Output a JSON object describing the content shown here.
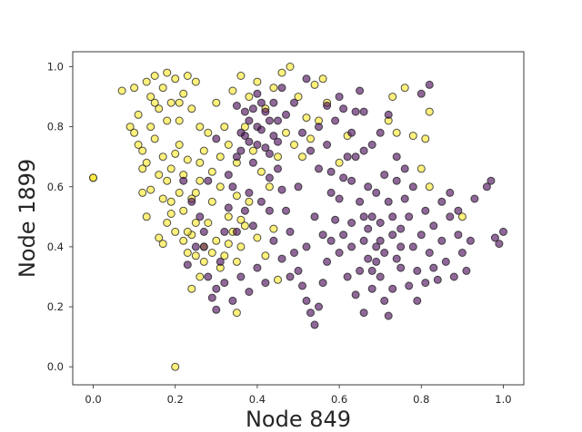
{
  "chart_data": {
    "type": "scatter",
    "title": "",
    "xlabel": "Node 849",
    "ylabel": "Node 1899",
    "xlim": [
      -0.05,
      1.05
    ],
    "ylim": [
      -0.06,
      1.05
    ],
    "xticks": [
      "0.0",
      "0.2",
      "0.4",
      "0.6",
      "0.8",
      "1.0"
    ],
    "yticks": [
      "0.0",
      "0.2",
      "0.4",
      "0.6",
      "0.8",
      "1.0"
    ],
    "xtick_values": [
      0.0,
      0.2,
      0.4,
      0.6,
      0.8,
      1.0
    ],
    "ytick_values": [
      0.0,
      0.2,
      0.4,
      0.6,
      0.8,
      1.0
    ],
    "grid": false,
    "legend": "none",
    "series": [
      {
        "color": "#fde725",
        "points": [
          [
            0.0,
            0.63
          ],
          [
            0.2,
            0.0
          ],
          [
            0.0,
            0.63
          ],
          [
            0.07,
            0.92
          ],
          [
            0.09,
            0.8
          ],
          [
            0.1,
            0.78
          ],
          [
            0.12,
            0.72
          ],
          [
            0.11,
            0.84
          ],
          [
            0.13,
            0.95
          ],
          [
            0.14,
            0.9
          ],
          [
            0.15,
            0.97
          ],
          [
            0.16,
            0.86
          ],
          [
            0.17,
            0.93
          ],
          [
            0.18,
            0.98
          ],
          [
            0.19,
            0.88
          ],
          [
            0.2,
            0.96
          ],
          [
            0.21,
            0.82
          ],
          [
            0.22,
            0.91
          ],
          [
            0.23,
            0.97
          ],
          [
            0.24,
            0.86
          ],
          [
            0.25,
            0.95
          ],
          [
            0.26,
            0.8
          ],
          [
            0.15,
            0.76
          ],
          [
            0.17,
            0.7
          ],
          [
            0.19,
            0.66
          ],
          [
            0.21,
            0.74
          ],
          [
            0.23,
            0.69
          ],
          [
            0.13,
            0.68
          ],
          [
            0.12,
            0.66
          ],
          [
            0.16,
            0.64
          ],
          [
            0.14,
            0.59
          ],
          [
            0.12,
            0.58
          ],
          [
            0.13,
            0.5
          ],
          [
            0.16,
            0.43
          ],
          [
            0.17,
            0.41
          ],
          [
            0.18,
            0.48
          ],
          [
            0.19,
            0.55
          ],
          [
            0.2,
            0.45
          ],
          [
            0.22,
            0.52
          ],
          [
            0.23,
            0.38
          ],
          [
            0.24,
            0.44
          ],
          [
            0.25,
            0.58
          ],
          [
            0.26,
            0.62
          ],
          [
            0.27,
            0.35
          ],
          [
            0.28,
            0.48
          ],
          [
            0.29,
            0.55
          ],
          [
            0.3,
            0.42
          ],
          [
            0.31,
            0.6
          ],
          [
            0.32,
            0.37
          ],
          [
            0.33,
            0.5
          ],
          [
            0.34,
            0.45
          ],
          [
            0.35,
            0.57
          ],
          [
            0.36,
            0.4
          ],
          [
            0.3,
            0.88
          ],
          [
            0.32,
            0.8
          ],
          [
            0.34,
            0.92
          ],
          [
            0.36,
            0.97
          ],
          [
            0.38,
            0.9
          ],
          [
            0.4,
            0.95
          ],
          [
            0.42,
            0.86
          ],
          [
            0.44,
            0.93
          ],
          [
            0.46,
            0.98
          ],
          [
            0.48,
            1.0
          ],
          [
            0.5,
            0.9
          ],
          [
            0.52,
            0.83
          ],
          [
            0.54,
            0.94
          ],
          [
            0.56,
            0.96
          ],
          [
            0.57,
            0.88
          ],
          [
            0.47,
            0.78
          ],
          [
            0.49,
            0.74
          ],
          [
            0.51,
            0.7
          ],
          [
            0.53,
            0.76
          ],
          [
            0.55,
            0.82
          ],
          [
            0.45,
            0.7
          ],
          [
            0.28,
            0.78
          ],
          [
            0.27,
            0.72
          ],
          [
            0.26,
            0.68
          ],
          [
            0.29,
            0.65
          ],
          [
            0.31,
            0.7
          ],
          [
            0.33,
            0.74
          ],
          [
            0.35,
            0.68
          ],
          [
            0.37,
            0.8
          ],
          [
            0.39,
            0.72
          ],
          [
            0.41,
            0.65
          ],
          [
            0.43,
            0.6
          ],
          [
            0.38,
            0.55
          ],
          [
            0.36,
            0.49
          ],
          [
            0.4,
            0.43
          ],
          [
            0.42,
            0.37
          ],
          [
            0.44,
            0.46
          ],
          [
            0.26,
            0.3
          ],
          [
            0.24,
            0.26
          ],
          [
            0.35,
            0.18
          ],
          [
            0.45,
            0.29
          ],
          [
            0.76,
            0.93
          ],
          [
            0.78,
            0.77
          ],
          [
            0.8,
            0.66
          ],
          [
            0.82,
            0.6
          ],
          [
            0.82,
            0.85
          ],
          [
            0.81,
            0.76
          ],
          [
            0.72,
            0.82
          ],
          [
            0.74,
            0.78
          ],
          [
            0.73,
            0.9
          ],
          [
            0.9,
            0.5
          ],
          [
            0.62,
            0.77
          ],
          [
            0.6,
            0.68
          ],
          [
            0.15,
            0.88
          ],
          [
            0.18,
            0.82
          ],
          [
            0.21,
            0.88
          ],
          [
            0.14,
            0.8
          ],
          [
            0.11,
            0.74
          ],
          [
            0.1,
            0.93
          ],
          [
            0.2,
            0.71
          ],
          [
            0.22,
            0.64
          ],
          [
            0.18,
            0.62
          ],
          [
            0.24,
            0.56
          ],
          [
            0.21,
            0.58
          ],
          [
            0.19,
            0.51
          ],
          [
            0.17,
            0.56
          ],
          [
            0.25,
            0.48
          ],
          [
            0.23,
            0.45
          ],
          [
            0.27,
            0.4
          ],
          [
            0.29,
            0.38
          ],
          [
            0.31,
            0.33
          ],
          [
            0.33,
            0.41
          ],
          [
            0.35,
            0.35
          ],
          [
            0.37,
            0.47
          ],
          [
            0.25,
            0.37
          ],
          [
            0.22,
            0.42
          ]
        ]
      },
      {
        "color": "#440154",
        "points": [
          [
            0.22,
            0.62
          ],
          [
            0.24,
            0.55
          ],
          [
            0.26,
            0.5
          ],
          [
            0.27,
            0.4
          ],
          [
            0.28,
            0.3
          ],
          [
            0.29,
            0.23
          ],
          [
            0.3,
            0.19
          ],
          [
            0.31,
            0.35
          ],
          [
            0.32,
            0.45
          ],
          [
            0.33,
            0.53
          ],
          [
            0.34,
            0.6
          ],
          [
            0.35,
            0.7
          ],
          [
            0.36,
            0.78
          ],
          [
            0.37,
            0.85
          ],
          [
            0.38,
            0.75
          ],
          [
            0.39,
            0.68
          ],
          [
            0.4,
            0.8
          ],
          [
            0.41,
            0.88
          ],
          [
            0.42,
            0.73
          ],
          [
            0.43,
            0.82
          ],
          [
            0.44,
            0.77
          ],
          [
            0.45,
            0.66
          ],
          [
            0.46,
            0.59
          ],
          [
            0.47,
            0.52
          ],
          [
            0.48,
            0.45
          ],
          [
            0.49,
            0.38
          ],
          [
            0.5,
            0.32
          ],
          [
            0.51,
            0.27
          ],
          [
            0.52,
            0.22
          ],
          [
            0.53,
            0.18
          ],
          [
            0.54,
            0.14
          ],
          [
            0.55,
            0.2
          ],
          [
            0.56,
            0.28
          ],
          [
            0.57,
            0.35
          ],
          [
            0.58,
            0.42
          ],
          [
            0.59,
            0.49
          ],
          [
            0.6,
            0.56
          ],
          [
            0.61,
            0.63
          ],
          [
            0.62,
            0.7
          ],
          [
            0.63,
            0.78
          ],
          [
            0.64,
            0.85
          ],
          [
            0.65,
            0.92
          ],
          [
            0.66,
            0.72
          ],
          [
            0.67,
            0.6
          ],
          [
            0.68,
            0.5
          ],
          [
            0.69,
            0.4
          ],
          [
            0.7,
            0.3
          ],
          [
            0.71,
            0.22
          ],
          [
            0.72,
            0.17
          ],
          [
            0.73,
            0.26
          ],
          [
            0.74,
            0.36
          ],
          [
            0.75,
            0.46
          ],
          [
            0.76,
            0.56
          ],
          [
            0.77,
            0.5
          ],
          [
            0.78,
            0.4
          ],
          [
            0.79,
            0.32
          ],
          [
            0.8,
            0.44
          ],
          [
            0.81,
            0.52
          ],
          [
            0.82,
            0.38
          ],
          [
            0.83,
            0.47
          ],
          [
            0.84,
            0.29
          ],
          [
            0.85,
            0.42
          ],
          [
            0.86,
            0.35
          ],
          [
            0.87,
            0.5
          ],
          [
            0.88,
            0.3
          ],
          [
            0.89,
            0.44
          ],
          [
            0.9,
            0.38
          ],
          [
            0.91,
            0.32
          ],
          [
            0.92,
            0.42
          ],
          [
            0.96,
            0.6
          ],
          [
            0.97,
            0.62
          ],
          [
            0.98,
            0.43
          ],
          [
            0.99,
            0.41
          ],
          [
            1.0,
            0.45
          ],
          [
            0.93,
            0.56
          ],
          [
            0.8,
            0.91
          ],
          [
            0.82,
            0.94
          ],
          [
            0.57,
            0.87
          ],
          [
            0.6,
            0.9
          ],
          [
            0.52,
            0.96
          ],
          [
            0.46,
            0.93
          ],
          [
            0.4,
            0.91
          ],
          [
            0.35,
            0.87
          ],
          [
            0.3,
            0.76
          ],
          [
            0.28,
            0.62
          ],
          [
            0.33,
            0.64
          ],
          [
            0.38,
            0.58
          ],
          [
            0.43,
            0.52
          ],
          [
            0.5,
            0.6
          ],
          [
            0.55,
            0.66
          ],
          [
            0.58,
            0.58
          ],
          [
            0.63,
            0.48
          ],
          [
            0.66,
            0.42
          ],
          [
            0.7,
            0.48
          ],
          [
            0.72,
            0.55
          ],
          [
            0.74,
            0.62
          ],
          [
            0.76,
            0.66
          ],
          [
            0.78,
            0.6
          ],
          [
            0.6,
            0.38
          ],
          [
            0.62,
            0.3
          ],
          [
            0.64,
            0.24
          ],
          [
            0.66,
            0.18
          ],
          [
            0.68,
            0.26
          ],
          [
            0.56,
            0.44
          ],
          [
            0.54,
            0.5
          ],
          [
            0.52,
            0.4
          ],
          [
            0.48,
            0.3
          ],
          [
            0.46,
            0.36
          ],
          [
            0.44,
            0.42
          ],
          [
            0.42,
            0.28
          ],
          [
            0.4,
            0.33
          ],
          [
            0.38,
            0.25
          ],
          [
            0.36,
            0.3
          ],
          [
            0.34,
            0.22
          ],
          [
            0.32,
            0.28
          ],
          [
            0.3,
            0.26
          ],
          [
            0.27,
            0.45
          ],
          [
            0.25,
            0.4
          ],
          [
            0.23,
            0.34
          ],
          [
            0.35,
            0.45
          ],
          [
            0.37,
            0.52
          ],
          [
            0.39,
            0.47
          ],
          [
            0.41,
            0.55
          ],
          [
            0.43,
            0.63
          ],
          [
            0.45,
            0.75
          ],
          [
            0.47,
            0.84
          ],
          [
            0.49,
            0.88
          ],
          [
            0.51,
            0.78
          ],
          [
            0.53,
            0.72
          ],
          [
            0.55,
            0.8
          ],
          [
            0.57,
            0.74
          ],
          [
            0.59,
            0.82
          ],
          [
            0.61,
            0.86
          ],
          [
            0.63,
            0.62
          ],
          [
            0.65,
            0.55
          ],
          [
            0.67,
            0.36
          ],
          [
            0.69,
            0.58
          ],
          [
            0.71,
            0.64
          ],
          [
            0.73,
            0.44
          ],
          [
            0.75,
            0.33
          ],
          [
            0.77,
            0.27
          ],
          [
            0.79,
            0.22
          ],
          [
            0.81,
            0.28
          ],
          [
            0.83,
            0.33
          ],
          [
            0.85,
            0.55
          ],
          [
            0.87,
            0.58
          ],
          [
            0.89,
            0.52
          ],
          [
            0.66,
            0.85
          ],
          [
            0.7,
            0.78
          ],
          [
            0.74,
            0.7
          ],
          [
            0.72,
            0.84
          ],
          [
            0.68,
            0.74
          ],
          [
            0.64,
            0.7
          ],
          [
            0.58,
            0.65
          ],
          [
            0.4,
            0.74
          ],
          [
            0.42,
            0.85
          ],
          [
            0.38,
            0.82
          ],
          [
            0.44,
            0.88
          ],
          [
            0.36,
            0.72
          ],
          [
            0.41,
            0.79
          ],
          [
            0.39,
            0.86
          ],
          [
            0.43,
            0.71
          ],
          [
            0.37,
            0.77
          ],
          [
            0.45,
            0.82
          ],
          [
            0.61,
            0.44
          ],
          [
            0.67,
            0.46
          ],
          [
            0.69,
            0.35
          ],
          [
            0.71,
            0.38
          ],
          [
            0.65,
            0.32
          ],
          [
            0.63,
            0.4
          ],
          [
            0.73,
            0.5
          ],
          [
            0.75,
            0.4
          ],
          [
            0.7,
            0.42
          ],
          [
            0.68,
            0.32
          ],
          [
            0.66,
            0.5
          ]
        ]
      }
    ]
  }
}
